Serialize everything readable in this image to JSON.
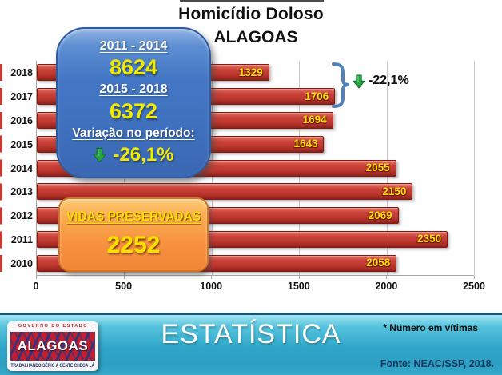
{
  "title": {
    "line1": "Homicídio Doloso",
    "line2": "ALAGOAS"
  },
  "chart_data": {
    "type": "bar",
    "orientation": "horizontal",
    "title": "Homicídio Doloso ALAGOAS",
    "categories": [
      "2018",
      "2017",
      "2016",
      "2015",
      "2014",
      "2013",
      "2012",
      "2011",
      "2010"
    ],
    "values": [
      1329,
      1706,
      1694,
      1643,
      2055,
      2150,
      2069,
      2350,
      2058
    ],
    "x_ticks": [
      "0",
      "500",
      "1000",
      "1500",
      "2000",
      "2500"
    ],
    "xlim": [
      0,
      2500
    ],
    "grid": "vertical",
    "bar_color": "#c13a31",
    "value_label_color": "#ffdf00",
    "unit_note": "Número em vítimas"
  },
  "callout_summary": {
    "period1_label": "2011 - 2014",
    "period1_value": "8624",
    "period2_label": "2015 - 2018",
    "period2_value": "6372",
    "variation_label": "Variação no período:",
    "variation_value": "-26,1%"
  },
  "callout_lives": {
    "label": "VIDAS PRESERVADAS",
    "value": "2252"
  },
  "annotation": {
    "delta_label": "-22,1%",
    "applies_to": "2017 → 2018"
  },
  "footer": {
    "banner": "ESTATÍSTICA",
    "note": "* Número em vítimas",
    "source": "Fonte: NEAC/SSP, 2018.",
    "logo": {
      "top": "GOVERNO DO ESTADO",
      "name": "ALAGOAS",
      "slogan": "TRABALHANDO SÉRIO A GENTE CHEGA LÁ"
    }
  },
  "colors": {
    "accent_blue": "#4377c5",
    "accent_orange": "#f79240",
    "bar_red": "#c13a31",
    "value_yellow": "#f2ea00",
    "arrow_green": "#27a343",
    "footer_teal": "#2fa6c8"
  }
}
